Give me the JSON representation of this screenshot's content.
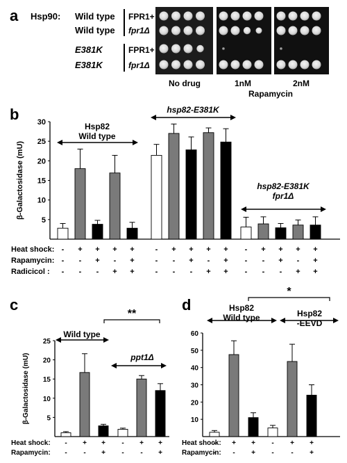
{
  "panel_letters": [
    "a",
    "b",
    "c",
    "d"
  ],
  "panel_a": {
    "row_header": "Hsp90:",
    "rows": [
      {
        "allele": "Wild type",
        "strain": "FPR1+"
      },
      {
        "allele": "Wild type",
        "strain": "fpr1Δ"
      },
      {
        "allele": "E381K",
        "strain": "FPR1+"
      },
      {
        "allele": "E381K",
        "strain": "fpr1Δ"
      }
    ],
    "columns": [
      "No drug",
      "1nM",
      "2nM"
    ],
    "drug_label": "Rapamycin"
  },
  "treatment_labels": {
    "heat": "Heat shock:",
    "rapa": "Rapamycin:",
    "radi": "Radicicol :"
  },
  "significance": {
    "c": "**",
    "d": "*"
  },
  "chart_data": [
    {
      "panel": "b",
      "type": "bar",
      "ylabel": "β-Galactosidase (mU)",
      "ylim": [
        0,
        30
      ],
      "yticks": [
        5,
        10,
        15,
        20,
        25,
        30
      ],
      "groups": [
        {
          "label": "Hsp82\nWild type",
          "values": [
            2.8,
            18.0,
            3.8,
            16.9,
            2.8
          ],
          "errors": [
            1.2,
            5.0,
            1.0,
            4.5,
            1.5
          ]
        },
        {
          "label": "hsp82-E381K",
          "values": [
            21.4,
            27.0,
            22.8,
            27.2,
            24.8
          ],
          "errors": [
            2.8,
            2.4,
            3.3,
            1.2,
            3.4
          ]
        },
        {
          "label": "hsp82-E381K\nfpr1Δ",
          "values": [
            3.1,
            3.9,
            2.9,
            3.6,
            3.6
          ],
          "errors": [
            2.5,
            1.8,
            1.1,
            1.3,
            2.1
          ]
        }
      ],
      "fill_pattern": [
        "white",
        "gray",
        "black",
        "gray",
        "black"
      ],
      "treatments": {
        "heat": [
          "-",
          "+",
          "+",
          "+",
          "+",
          "-",
          "+",
          "+",
          "+",
          "+",
          "-",
          "+",
          "+",
          "+",
          "+"
        ],
        "rapa": [
          "-",
          "-",
          "+",
          "-",
          "+",
          "-",
          "-",
          "+",
          "-",
          "+",
          "-",
          "-",
          "+",
          "-",
          "+"
        ],
        "radi": [
          "-",
          "-",
          "-",
          "+",
          "+",
          "-",
          "-",
          "-",
          "+",
          "+",
          "-",
          "-",
          "-",
          "+",
          "+"
        ]
      }
    },
    {
      "panel": "c",
      "type": "bar",
      "ylabel": "β-Galactosidase (mU)",
      "ylim": [
        0,
        25
      ],
      "yticks": [
        5,
        10,
        15,
        20,
        25
      ],
      "groups": [
        {
          "label": "Wild type",
          "values": [
            1.0,
            16.7,
            2.8
          ],
          "errors": [
            0.3,
            4.9,
            0.4
          ]
        },
        {
          "label": "ppt1Δ",
          "values": [
            1.9,
            15.0,
            12.0
          ],
          "errors": [
            0.3,
            0.9,
            1.8
          ]
        }
      ],
      "fill_pattern": [
        "white",
        "gray",
        "black"
      ],
      "treatments": {
        "heat": [
          "-",
          "+",
          "+",
          "-",
          "+",
          "+"
        ],
        "rapa": [
          "-",
          "-",
          "+",
          "-",
          "-",
          "+"
        ]
      }
    },
    {
      "panel": "d",
      "type": "bar",
      "ylim": [
        0,
        60
      ],
      "yticks": [
        10,
        20,
        30,
        40,
        50,
        60
      ],
      "groups": [
        {
          "label": "Hsp82\nWild type",
          "values": [
            2.5,
            47.5,
            11.0
          ],
          "errors": [
            1.0,
            8.0,
            2.8
          ]
        },
        {
          "label": "Hsp82\n-EEVD",
          "values": [
            5.0,
            43.5,
            24.0
          ],
          "errors": [
            1.5,
            10.0,
            6.0
          ]
        }
      ],
      "fill_pattern": [
        "white",
        "gray",
        "black"
      ],
      "treatments": {
        "heat": [
          "-",
          "+",
          "+",
          "-",
          "+",
          "+"
        ],
        "rapa": [
          "-",
          "-",
          "+",
          "-",
          "-",
          "+"
        ]
      }
    }
  ]
}
